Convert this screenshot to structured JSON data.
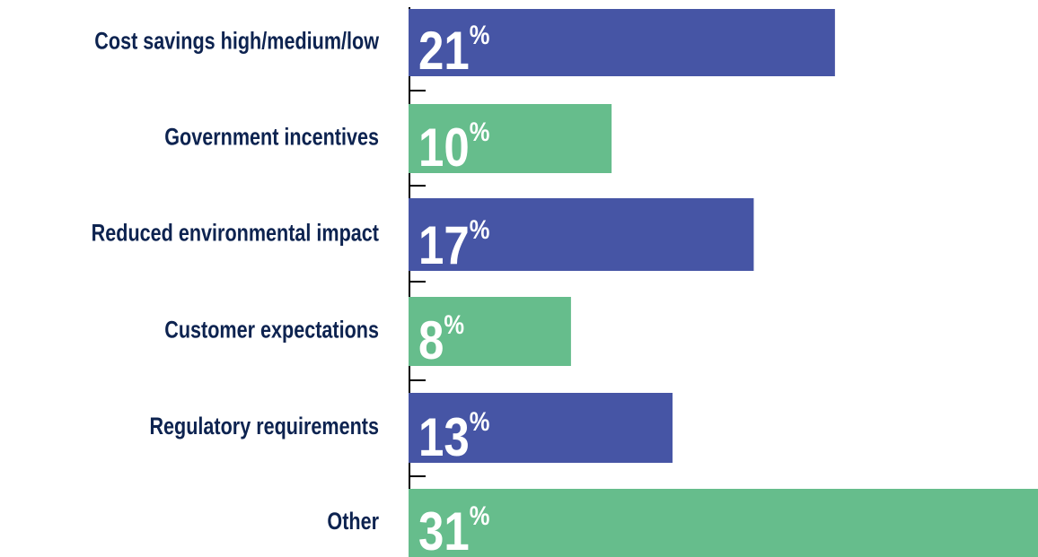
{
  "chart_data": {
    "type": "hbar",
    "categories": [
      "Cost savings high/medium/low",
      "Government incentives",
      "Reduced environmental impact",
      "Customer expectations",
      "Regulatory requirements",
      "Other"
    ],
    "values": [
      21,
      10,
      17,
      8,
      13,
      31
    ],
    "value_labels": [
      "21%",
      "10%",
      "17%",
      "8%",
      "13%",
      "31%"
    ],
    "colors": [
      "#4655a5",
      "#66bd8c",
      "#4655a5",
      "#66bd8c",
      "#4655a5",
      "#66bd8c"
    ],
    "xlim": [
      0,
      31
    ]
  }
}
